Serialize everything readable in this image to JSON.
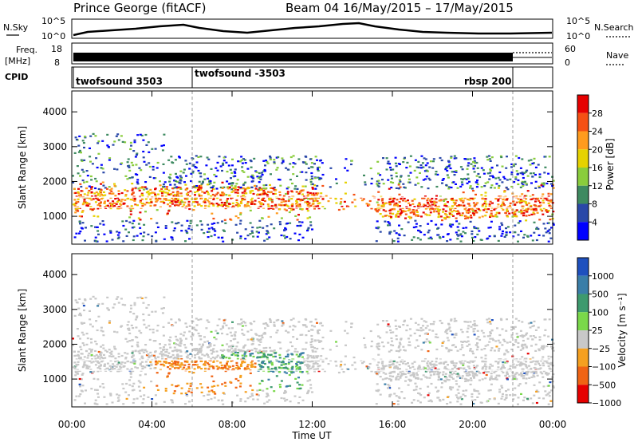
{
  "header": {
    "station": "Prince George (fitACF)",
    "beam_dates": "Beam 04 16/May/2015 – 17/May/2015"
  },
  "noise_panel": {
    "left_label": "N.Sky",
    "right_label": "N.Search",
    "left_ticks": [
      "10^5",
      "10^0"
    ],
    "right_ticks": [
      "10^5",
      "10^0"
    ]
  },
  "freq_panel": {
    "left_label_1": "Freq.",
    "left_label_2": "[MHz]",
    "right_label": "Nave",
    "left_ticks": [
      "18",
      "8"
    ],
    "right_ticks": [
      "60",
      "0"
    ]
  },
  "cpid_panel": {
    "label": "CPID",
    "segments": [
      "twofsound 3503",
      "twofsound -3503",
      "rbsp 200"
    ]
  },
  "chart_data": [
    {
      "type": "heatmap",
      "name": "power",
      "ylabel": "Slant Range [km]",
      "yticks": [
        "1000",
        "2000",
        "3000",
        "4000"
      ],
      "ylim": [
        200,
        4600
      ],
      "colorbar_label": "Power [dB]",
      "colorbar_ticks": [
        "4",
        "8",
        "12",
        "16",
        "20",
        "24",
        "28"
      ],
      "colors": [
        "#0000ff",
        "#2a48a8",
        "#3e8a60",
        "#8acd3c",
        "#e6d200",
        "#ff9b1e",
        "#f55014",
        "#e60000"
      ]
    },
    {
      "type": "heatmap",
      "name": "velocity",
      "ylabel": "Slant Range [km]",
      "yticks": [
        "1000",
        "2000",
        "3000",
        "4000"
      ],
      "ylim": [
        200,
        4600
      ],
      "colorbar_label": "Velocity [m s⁻¹]",
      "colorbar_ticks": [
        "1000",
        "500",
        "100",
        "25",
        "−25",
        "−100",
        "−500",
        "−1000"
      ],
      "colors": [
        "#1e50be",
        "#3a7ea8",
        "#3d9a6e",
        "#7ad84a",
        "#c8c8c8",
        "#f5a020",
        "#f06414",
        "#e60000"
      ],
      "xlabel": "Time UT",
      "xticks": [
        "00:00",
        "04:00",
        "08:00",
        "12:00",
        "16:00",
        "20:00",
        "00:00"
      ]
    }
  ]
}
